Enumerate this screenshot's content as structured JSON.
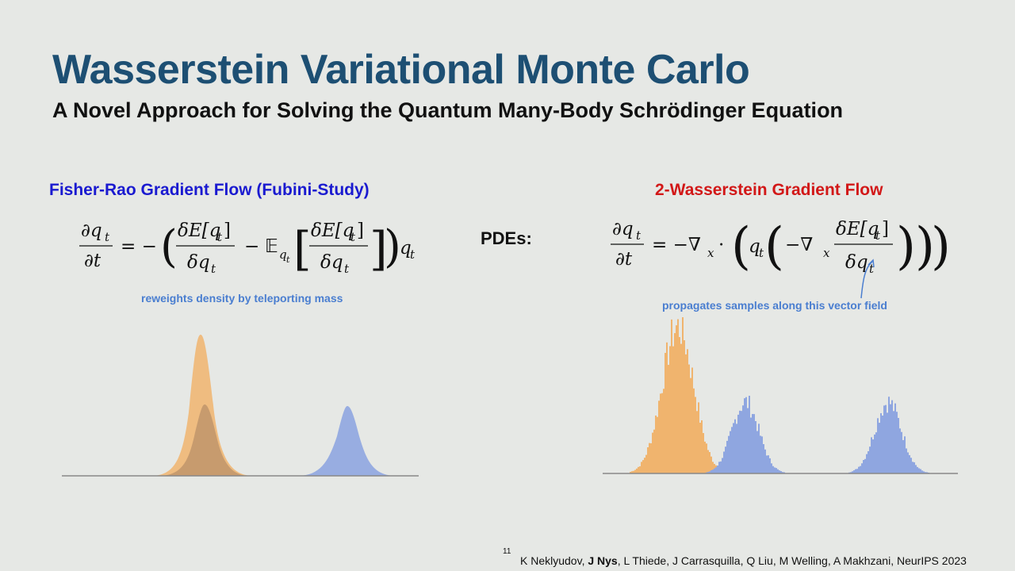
{
  "slide": {
    "title": "Wasserstein Variational Monte Carlo",
    "subtitle": "A Novel Approach for Solving the Quantum Many-Body Schrödinger Equation",
    "pdes_label": "PDEs:",
    "page_number": "11"
  },
  "left": {
    "heading": "Fisher-Rao Gradient Flow (Fubini-Study)",
    "note": "reweights density by teleporting mass"
  },
  "right": {
    "heading": "2-Wasserstein Gradient Flow",
    "note": "propagates samples along this vector field"
  },
  "citation": {
    "authors": [
      "K Neklyudov",
      "J Nys",
      "L Thiede",
      "J Carrasquilla",
      "Q Liu",
      "M Welling",
      "A Makhzani"
    ],
    "venue": "NeurIPS 2023"
  },
  "colors": {
    "title": "#1d4f73",
    "fisher_heading": "#1a1ad0",
    "wasserstein_heading": "#d21818",
    "note": "#4a7ed0",
    "orange_density": "#f0b46e",
    "blue_density": "#8fa6e0"
  }
}
